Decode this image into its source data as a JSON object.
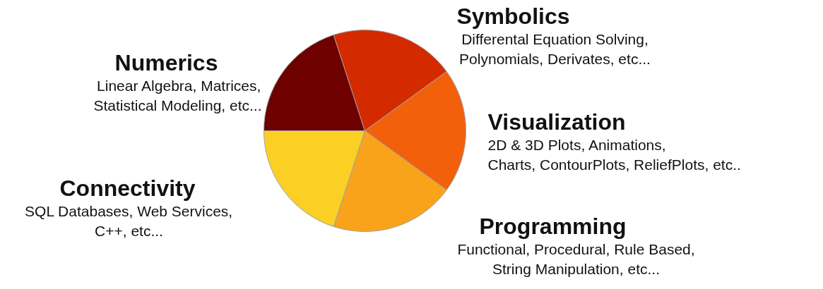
{
  "chart_data": {
    "type": "pie",
    "categories": [
      "Numerics",
      "Symbolics",
      "Visualization",
      "Programming",
      "Connectivity"
    ],
    "values": [
      20,
      20,
      20,
      20,
      20
    ],
    "colors": [
      "#6e0000",
      "#d42a00",
      "#f2600c",
      "#f9a31a",
      "#fbcf24"
    ],
    "annotations": [
      "Linear Algebra, Matrices,\nStatistical Modeling, etc...",
      "Differental Equation Solving,\nPolynomials, Derivates, etc...",
      "2D & 3D Plots, Animations,\nCharts, ContourPlots, ReliefPlots, etc..",
      "Functional, Procedural, Rule Based,\nString Manipulation, etc...",
      "SQL Databases, Web Services,\nC++, etc..."
    ]
  }
}
